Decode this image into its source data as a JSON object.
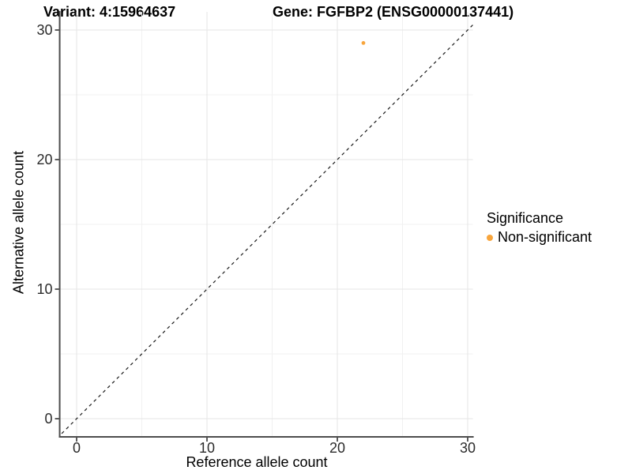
{
  "chart_data": {
    "type": "scatter",
    "titles": {
      "left": "Variant: 4:15964637",
      "right": "Gene: FGFBP2 (ENSG00000137441)"
    },
    "xlabel": "Reference allele count",
    "ylabel": "Alternative allele count",
    "x_ticks": [
      0,
      10,
      20,
      30
    ],
    "y_ticks": [
      0,
      10,
      20,
      30
    ],
    "x_minor_ticks": [
      5,
      15,
      25
    ],
    "y_minor_ticks": [
      5,
      15,
      25
    ],
    "xlim": [
      -1.3,
      30.4
    ],
    "ylim": [
      -1.4,
      31.4
    ],
    "grid": "major+minor",
    "points": [
      {
        "x": 22,
        "y": 29,
        "series": "Non-significant"
      }
    ],
    "identity_line": {
      "style": "dashed",
      "slope": 1,
      "intercept": 0
    },
    "legend": {
      "title": "Significance",
      "position": "right",
      "entries": [
        {
          "label": "Non-significant",
          "color": "#F8A53C"
        }
      ]
    },
    "colors": {
      "point": "#F8A53C",
      "grid_major": "#E5E5E5",
      "grid_minor": "#F1F1F1",
      "axis_line": "#4D4D4D",
      "tick_mark": "#333333",
      "tick_label": "#2B2B2B",
      "dashed_line": "#1A1A1A",
      "background": "#FFFFFF"
    }
  }
}
